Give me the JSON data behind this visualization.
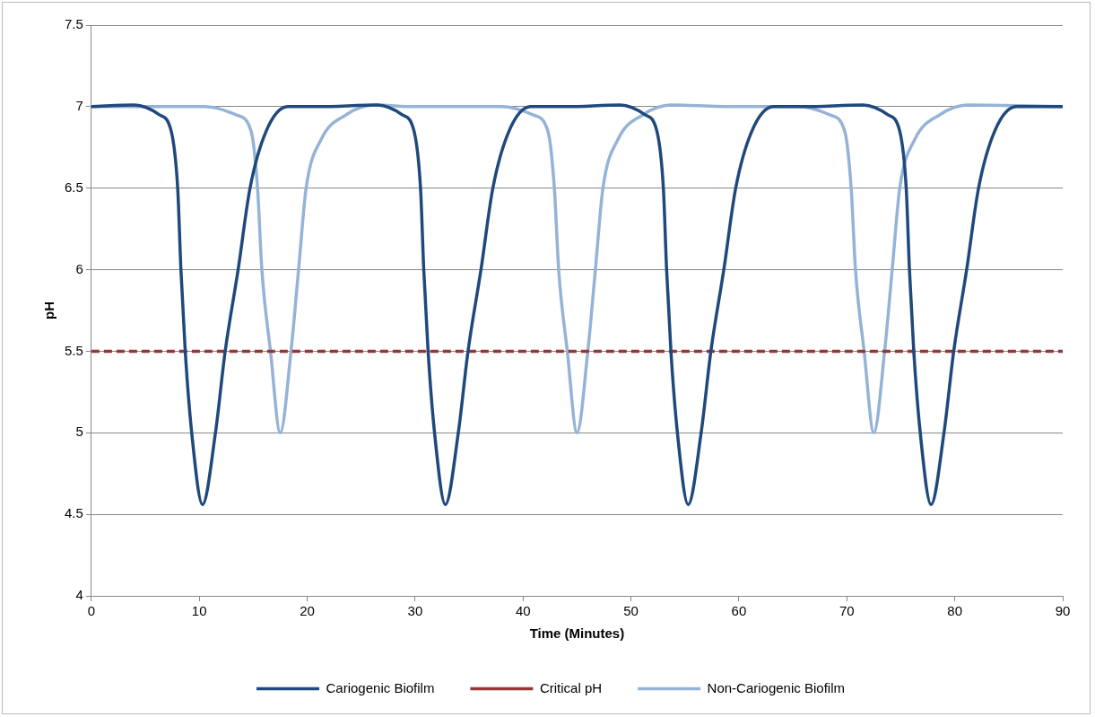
{
  "chart_data": {
    "type": "line",
    "xlabel": "Time (Minutes)",
    "ylabel": "pH",
    "xlim": [
      0,
      90
    ],
    "xticks": [
      0,
      10,
      20,
      30,
      40,
      50,
      60,
      70,
      80,
      90
    ],
    "ylim": [
      4,
      7.5
    ],
    "yticks": [
      4,
      4.5,
      5,
      5.5,
      6,
      6.5,
      7,
      7.5
    ],
    "grid": "y",
    "legend": "bottom",
    "marker": "none",
    "series": [
      {
        "name": "Cariogenic Biofilm",
        "color": "#1f497d",
        "line_style": "solid",
        "x": [
          0,
          4.0,
          6.3,
          7.4,
          8.0,
          8.3,
          8.7,
          9.3,
          10.3,
          11.5,
          12.4,
          13.6,
          14.7,
          16.2,
          18.2,
          21,
          26.5,
          28.8,
          29.9,
          30.5,
          30.8,
          31.2,
          31.8,
          32.8,
          34.0,
          34.9,
          36.1,
          37.2,
          38.7,
          40.7,
          44,
          49.0,
          51.3,
          52.4,
          53.0,
          53.3,
          53.7,
          54.3,
          55.3,
          56.5,
          57.4,
          58.6,
          59.7,
          61.2,
          63.2,
          66,
          71.5,
          73.8,
          74.9,
          75.5,
          75.8,
          76.2,
          76.8,
          77.8,
          79.0,
          79.9,
          81.1,
          82.2,
          83.7,
          85.7,
          90
        ],
        "values": [
          7.0,
          7.01,
          6.95,
          6.85,
          6.5,
          6.0,
          5.5,
          5.0,
          4.56,
          5.0,
          5.5,
          6.0,
          6.5,
          6.85,
          7.0,
          7.0,
          7.01,
          6.95,
          6.85,
          6.5,
          6.0,
          5.5,
          5.0,
          4.56,
          5.0,
          5.5,
          6.0,
          6.5,
          6.85,
          7.0,
          7.0,
          7.01,
          6.95,
          6.85,
          6.5,
          6.0,
          5.5,
          5.0,
          4.56,
          5.0,
          5.5,
          6.0,
          6.5,
          6.85,
          7.0,
          7.0,
          7.01,
          6.95,
          6.85,
          6.5,
          6.0,
          5.5,
          5.0,
          4.56,
          5.0,
          5.5,
          6.0,
          6.5,
          6.85,
          7.0,
          7.0
        ]
      },
      {
        "name": "Critical pH",
        "color": "#953735",
        "line_style": "dashed",
        "x": [
          0,
          90
        ],
        "values": [
          5.5,
          5.5
        ]
      },
      {
        "name": "Non-Cariogenic Biofilm",
        "color": "#95b3d7",
        "line_style": "solid",
        "x": [
          0,
          10.5,
          13.4,
          14.8,
          15.4,
          15.8,
          16.6,
          17.5,
          18.5,
          19.2,
          19.9,
          21.3,
          23.6,
          26.2,
          30,
          38,
          40.9,
          42.3,
          42.9,
          43.3,
          44.1,
          45,
          46,
          46.7,
          47.4,
          48.8,
          51.1,
          53.7,
          60,
          65.5,
          68.4,
          69.8,
          70.4,
          70.8,
          71.6,
          72.5,
          73.5,
          74.2,
          74.9,
          76.3,
          78.6,
          81.2,
          90
        ],
        "values": [
          7.0,
          7.0,
          6.95,
          6.85,
          6.5,
          6.0,
          5.5,
          5.0,
          5.5,
          6.0,
          6.5,
          6.8,
          6.95,
          7.01,
          7.0,
          7.0,
          6.95,
          6.85,
          6.5,
          6.0,
          5.5,
          5.0,
          5.5,
          6.0,
          6.5,
          6.8,
          6.95,
          7.01,
          7.0,
          7.0,
          6.95,
          6.85,
          6.5,
          6.0,
          5.5,
          5.0,
          5.5,
          6.0,
          6.5,
          6.8,
          6.95,
          7.01,
          7.0
        ]
      }
    ]
  }
}
